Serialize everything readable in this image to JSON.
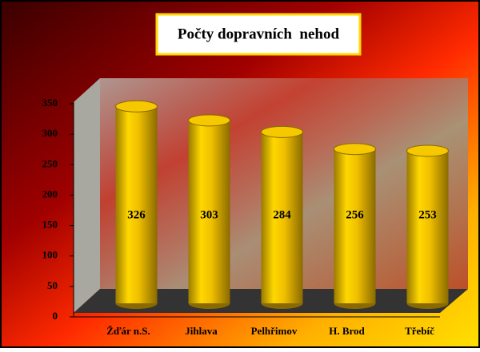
{
  "chart_data": {
    "type": "bar",
    "title": "Počty dopravních  nehod",
    "categories": [
      "Žďár n.S.",
      "Jihlava",
      "Pelhřimov",
      "H. Brod",
      "Třebíč"
    ],
    "values": [
      326,
      303,
      284,
      256,
      253
    ],
    "color": "#f5c800",
    "ylim": [
      0,
      350
    ],
    "yticks": [
      0,
      50,
      100,
      150,
      200,
      250,
      300,
      350
    ]
  }
}
